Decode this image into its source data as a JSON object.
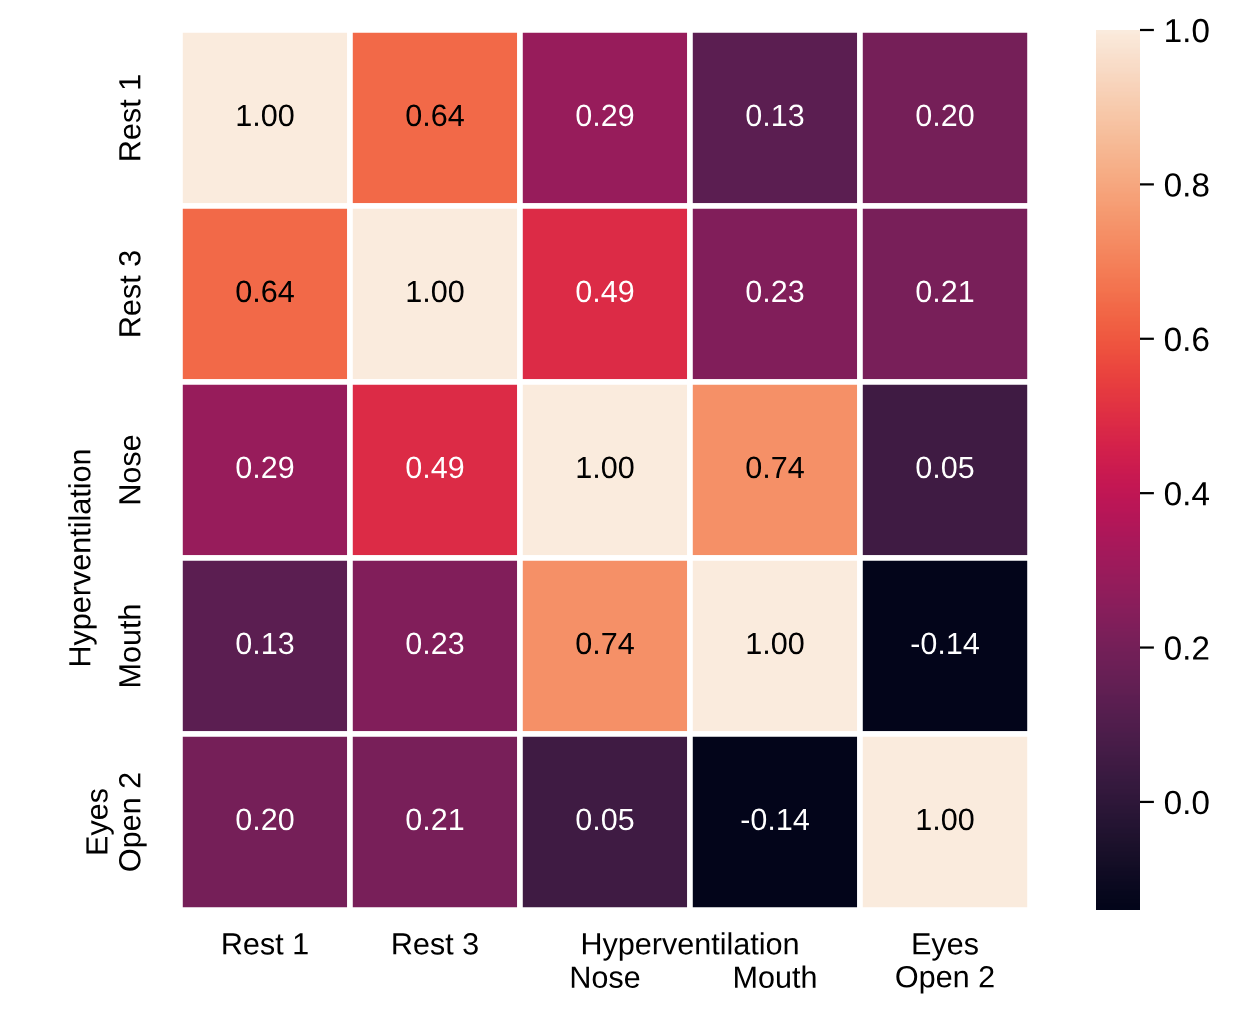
{
  "chart_data": {
    "type": "heatmap",
    "categories": [
      "Rest 1",
      "Rest 3",
      "Nose",
      "Mouth",
      "Eyes\nOpen 2"
    ],
    "y_categories": [
      "Rest 1",
      "Rest 3",
      "Nose",
      "Mouth",
      "Eyes\nOpen 2"
    ],
    "cells": [
      [
        1.0,
        0.64,
        0.29,
        0.13,
        0.2
      ],
      [
        0.64,
        1.0,
        0.49,
        0.23,
        0.21
      ],
      [
        0.29,
        0.49,
        1.0,
        0.74,
        0.05
      ],
      [
        0.13,
        0.23,
        0.74,
        1.0,
        -0.14
      ],
      [
        0.2,
        0.21,
        0.05,
        -0.14,
        1.0
      ]
    ],
    "cell_labels": [
      [
        "1.00",
        "0.64",
        "0.29",
        "0.13",
        "0.20"
      ],
      [
        "0.64",
        "1.00",
        "0.49",
        "0.23",
        "0.21"
      ],
      [
        "0.29",
        "0.49",
        "1.00",
        "0.74",
        "0.05"
      ],
      [
        "0.13",
        "0.23",
        "0.74",
        "1.00",
        "-0.14"
      ],
      [
        "0.20",
        "0.21",
        "0.05",
        "-0.14",
        "1.00"
      ]
    ],
    "clim": [
      -0.14,
      1.0
    ],
    "cticks": [
      {
        "value": 0.0,
        "label": "0.0"
      },
      {
        "value": 0.2,
        "label": "0.2"
      },
      {
        "value": 0.4,
        "label": "0.4"
      },
      {
        "value": 0.6,
        "label": "0.6"
      },
      {
        "value": 0.8,
        "label": "0.8"
      },
      {
        "value": 1.0,
        "label": "1.0"
      }
    ],
    "annotations": [
      "Hyperventilation",
      "Hyperventilation"
    ]
  }
}
